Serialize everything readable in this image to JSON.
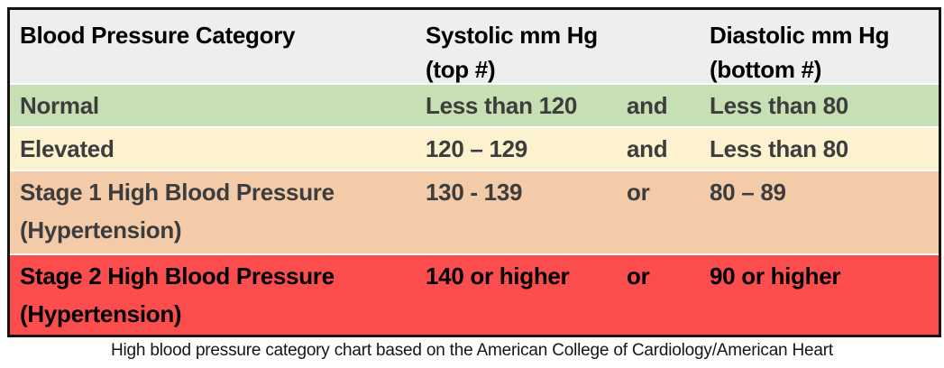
{
  "chart_data": {
    "type": "table",
    "title": "Blood pressure categories",
    "header_bg": "#efeeee",
    "border_color": "#141414",
    "separator_color": "#fdfdfd",
    "columns": [
      {
        "label": "Blood Pressure Category"
      },
      {
        "line1": "Systolic mm Hg",
        "line2": "(top #)"
      },
      {
        "label": ""
      },
      {
        "line1": "Diastolic mm Hg",
        "line2": "(bottom #)"
      }
    ],
    "rows": [
      {
        "category": "Normal",
        "systolic": "Less than 120",
        "conjunction": "and",
        "diastolic": "Less than 80",
        "bg": "#c6dfb3",
        "text_color": "#3d3d3d"
      },
      {
        "category": "Elevated",
        "systolic": "120 – 129",
        "conjunction": "and",
        "diastolic": "Less than 80",
        "bg": "#fdf2d0",
        "text_color": "#3d3d3d"
      },
      {
        "category": "Stage 1 High Blood Pressure (Hypertension)",
        "systolic": "130 - 139",
        "conjunction": "or",
        "diastolic": "80 – 89",
        "bg": "#f3cba9",
        "text_color": "#3d3d3d"
      },
      {
        "category": "Stage 2 High Blood Pressure (Hypertension)",
        "systolic": "140 or higher",
        "conjunction": "or",
        "diastolic": "90 or higher",
        "bg": "#fb4d4d",
        "text_color": "#000000"
      }
    ],
    "caption": "High blood pressure category chart based on the American College of Cardiology/American Heart"
  }
}
